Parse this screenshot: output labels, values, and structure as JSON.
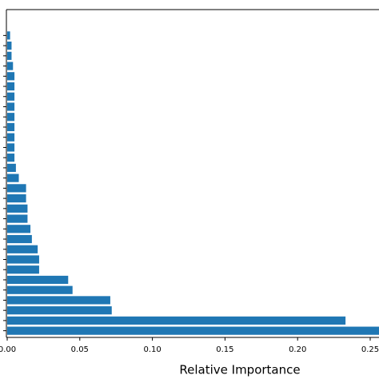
{
  "chart_data": {
    "type": "barh",
    "xlabel": "Relative Importance",
    "categories": [
      null,
      null,
      null,
      null,
      null,
      null,
      null,
      null,
      null,
      null,
      null,
      null,
      null,
      null,
      null,
      null,
      null,
      null,
      null,
      null,
      null,
      null,
      null,
      null,
      null,
      null,
      null,
      null,
      null,
      null
    ],
    "values": [
      0.26,
      0.233,
      0.072,
      0.071,
      0.045,
      0.042,
      0.022,
      0.022,
      0.021,
      0.017,
      0.016,
      0.014,
      0.014,
      0.013,
      0.013,
      0.008,
      0.006,
      0.005,
      0.005,
      0.005,
      0.005,
      0.005,
      0.005,
      0.005,
      0.005,
      0.005,
      0.004,
      0.003,
      0.003,
      0.002
    ],
    "color": "#1f77b4",
    "xlim": [
      0,
      0.25
    ],
    "xticks": [
      {
        "value": 0,
        "label": "0.00"
      },
      0.05,
      {
        "value": 0.1,
        "label": "0.10"
      },
      0.15,
      {
        "value": 0.2,
        "label": "0.20"
      },
      0.25
    ]
  }
}
